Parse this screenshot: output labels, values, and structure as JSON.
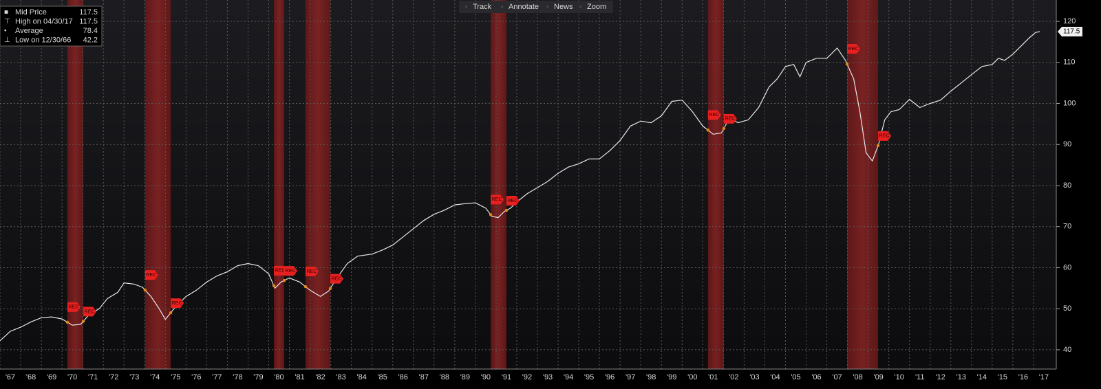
{
  "chart_data": {
    "type": "line",
    "toolbar": [
      "Track",
      "Annotate",
      "News",
      "Zoom"
    ],
    "legend": [
      {
        "label": "Mid Price",
        "value": 117.5
      },
      {
        "label": "High on 04/30/17",
        "value": 117.5
      },
      {
        "label": "Average",
        "value": 78.4
      },
      {
        "label": "Low on 12/30/66",
        "value": 42.2
      }
    ],
    "x": [
      1967.0,
      1967.5,
      1968.0,
      1968.5,
      1969.0,
      1969.5,
      1970.0,
      1970.5,
      1970.9,
      1971.3,
      1971.8,
      1972.2,
      1972.7,
      1973.0,
      1973.5,
      1973.9,
      1974.3,
      1974.7,
      1975.0,
      1975.5,
      1976.0,
      1976.5,
      1977.0,
      1977.5,
      1978.0,
      1978.5,
      1979.0,
      1979.5,
      1980.0,
      1980.3,
      1980.6,
      1981.0,
      1981.5,
      1982.0,
      1982.5,
      1982.9,
      1983.3,
      1983.8,
      1984.3,
      1985.0,
      1985.5,
      1986.0,
      1986.5,
      1987.0,
      1987.5,
      1988.0,
      1988.5,
      1989.0,
      1989.5,
      1990.0,
      1990.5,
      1990.8,
      1991.1,
      1991.4,
      1991.7,
      1992.0,
      1992.5,
      1993.0,
      1993.5,
      1994.0,
      1994.5,
      1995.0,
      1995.5,
      1996.0,
      1996.5,
      1997.0,
      1997.5,
      1998.0,
      1998.5,
      1999.0,
      1999.5,
      2000.0,
      2000.5,
      2001.0,
      2001.5,
      2001.9,
      2002.3,
      2002.7,
      2003.2,
      2003.7,
      2004.2,
      2004.6,
      2005.0,
      2005.4,
      2005.7,
      2006.0,
      2006.5,
      2007.0,
      2007.5,
      2007.9,
      2008.3,
      2008.6,
      2008.9,
      2009.2,
      2009.5,
      2009.8,
      2010.1,
      2010.5,
      2011.0,
      2011.5,
      2012.0,
      2012.5,
      2013.0,
      2013.5,
      2014.0,
      2014.5,
      2015.0,
      2015.3,
      2015.6,
      2016.0,
      2016.4,
      2016.8,
      2017.1,
      2017.3
    ],
    "series": [
      {
        "name": "Mid Price",
        "color": "#e8e8e8",
        "values": [
          42.2,
          44.5,
          45.5,
          46.8,
          47.8,
          48.0,
          47.5,
          46.0,
          46.2,
          48.5,
          50.0,
          52.5,
          54.0,
          56.3,
          56.0,
          55.2,
          53.0,
          50.0,
          47.4,
          50.5,
          53.0,
          54.5,
          56.5,
          58.0,
          59.0,
          60.5,
          61.0,
          60.5,
          58.5,
          55.0,
          56.5,
          57.5,
          56.5,
          54.5,
          53.0,
          54.3,
          57.5,
          61.0,
          62.8,
          63.3,
          64.3,
          65.5,
          67.5,
          69.5,
          71.5,
          73.0,
          74.0,
          75.3,
          75.6,
          75.8,
          74.5,
          72.5,
          72.2,
          73.7,
          74.5,
          76.0,
          78.0,
          79.5,
          81.0,
          83.0,
          84.5,
          85.3,
          86.5,
          86.5,
          88.5,
          91.0,
          94.5,
          95.7,
          95.3,
          97.0,
          100.5,
          100.8,
          98.0,
          94.5,
          92.5,
          92.8,
          96.5,
          95.3,
          96.0,
          99.0,
          104.0,
          106.0,
          109.0,
          109.5,
          106.5,
          110.0,
          111.0,
          111.0,
          113.5,
          110.5,
          106.0,
          98.0,
          88.0,
          86.0,
          90.0,
          96.0,
          98.0,
          98.5,
          101.0,
          99.0,
          100.0,
          100.8,
          103.0,
          105.0,
          107.0,
          109.0,
          109.5,
          111.0,
          110.5,
          112.0,
          114.0,
          116.0,
          117.3,
          117.5
        ]
      }
    ],
    "recession_label": "REC",
    "recessions": [
      [
        1970.26,
        1971.03
      ],
      [
        1974.02,
        1975.26
      ],
      [
        1980.25,
        1980.75
      ],
      [
        1981.78,
        1982.98
      ],
      [
        1990.74,
        1991.5
      ],
      [
        2001.25,
        2002.02
      ],
      [
        2007.98,
        2009.48
      ]
    ],
    "xlim": [
      1967.0,
      2018.1
    ],
    "ylim": [
      35.3,
      125.2
    ],
    "yticks": [
      40,
      50,
      60,
      70,
      80,
      90,
      100,
      110,
      120
    ],
    "xticks": [
      {
        "value": 1967,
        "label": "'67"
      },
      {
        "value": 1968,
        "label": "'68"
      },
      {
        "value": 1969,
        "label": "'69"
      },
      {
        "value": 1970,
        "label": "'70"
      },
      {
        "value": 1971,
        "label": "'71"
      },
      {
        "value": 1972,
        "label": "'72"
      },
      {
        "value": 1973,
        "label": "'73"
      },
      {
        "value": 1974,
        "label": "'74"
      },
      {
        "value": 1975,
        "label": "'75"
      },
      {
        "value": 1976,
        "label": "'76"
      },
      {
        "value": 1977,
        "label": "'77"
      },
      {
        "value": 1978,
        "label": "'78"
      },
      {
        "value": 1979,
        "label": "'79"
      },
      {
        "value": 1980,
        "label": "'80"
      },
      {
        "value": 1981,
        "label": "'81"
      },
      {
        "value": 1982,
        "label": "'82"
      },
      {
        "value": 1983,
        "label": "'83"
      },
      {
        "value": 1984,
        "label": "'84"
      },
      {
        "value": 1985,
        "label": "'85"
      },
      {
        "value": 1986,
        "label": "'86"
      },
      {
        "value": 1987,
        "label": "'87"
      },
      {
        "value": 1988,
        "label": "'88"
      },
      {
        "value": 1989,
        "label": "'89"
      },
      {
        "value": 1990,
        "label": "'90"
      },
      {
        "value": 1991,
        "label": "'91"
      },
      {
        "value": 1992,
        "label": "'92"
      },
      {
        "value": 1993,
        "label": "'93"
      },
      {
        "value": 1994,
        "label": "'94"
      },
      {
        "value": 1995,
        "label": "'95"
      },
      {
        "value": 1996,
        "label": "'96"
      },
      {
        "value": 1997,
        "label": "'97"
      },
      {
        "value": 1998,
        "label": "'98"
      },
      {
        "value": 1999,
        "label": "'99"
      },
      {
        "value": 2000,
        "label": "'00"
      },
      {
        "value": 2001,
        "label": "'01"
      },
      {
        "value": 2002,
        "label": "'02"
      },
      {
        "value": 2003,
        "label": "'03"
      },
      {
        "value": 2004,
        "label": "'04"
      },
      {
        "value": 2005,
        "label": "'05"
      },
      {
        "value": 2006,
        "label": "'06"
      },
      {
        "value": 2007,
        "label": "'07"
      },
      {
        "value": 2008,
        "label": "'08"
      },
      {
        "value": 2009,
        "label": "'09"
      },
      {
        "value": 2010,
        "label": "'10"
      },
      {
        "value": 2011,
        "label": "'11"
      },
      {
        "value": 2012,
        "label": "'12"
      },
      {
        "value": 2013,
        "label": "'13"
      },
      {
        "value": 2014,
        "label": "'14"
      },
      {
        "value": 2015,
        "label": "'15"
      },
      {
        "value": 2016,
        "label": "'16"
      },
      {
        "value": 2017,
        "label": "'17"
      }
    ],
    "grid": true
  }
}
